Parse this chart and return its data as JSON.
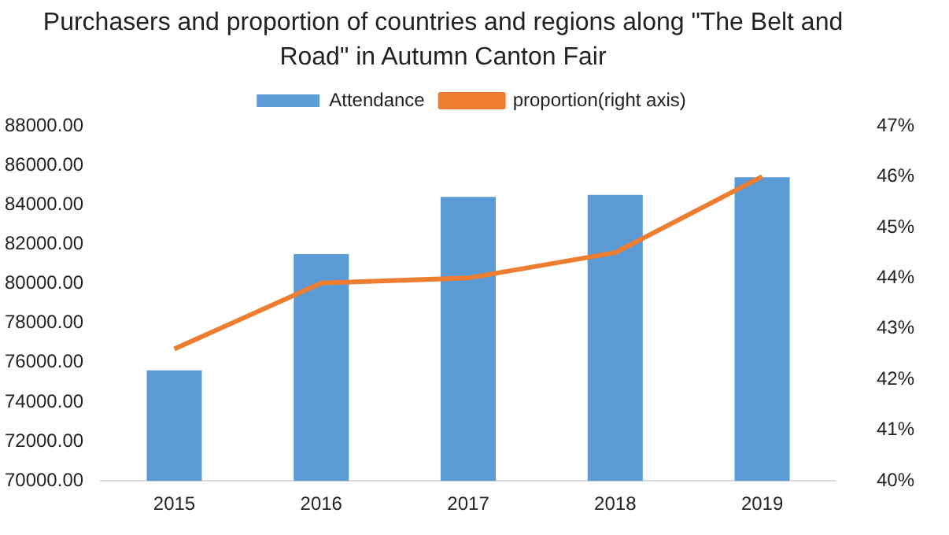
{
  "chart_data": {
    "type": "bar",
    "title": "Purchasers and proportion of countries and regions along \"The Belt and Road\" in Autumn Canton Fair",
    "categories": [
      "2015",
      "2016",
      "2017",
      "2018",
      "2019"
    ],
    "series": [
      {
        "name": "Attendance",
        "color": "#5b9bd5",
        "values": [
          75600,
          81500,
          84400,
          84500,
          85400
        ]
      },
      {
        "name": "proportion(right axis)",
        "type": "line",
        "axis": "y2",
        "color": "#ed7d31",
        "values": [
          42.6,
          43.9,
          44.0,
          44.5,
          46.0
        ]
      }
    ],
    "ylim": [
      70000,
      88000
    ],
    "yticks": [
      {
        "value": 70000,
        "label": "70000.00"
      },
      {
        "value": 72000,
        "label": "72000.00"
      },
      {
        "value": 74000,
        "label": "74000.00"
      },
      {
        "value": 76000,
        "label": "76000.00"
      },
      {
        "value": 78000,
        "label": "78000.00"
      },
      {
        "value": 80000,
        "label": "80000.00"
      },
      {
        "value": 82000,
        "label": "82000.00"
      },
      {
        "value": 84000,
        "label": "84000.00"
      },
      {
        "value": 86000,
        "label": "86000.00"
      },
      {
        "value": 88000,
        "label": "88000.00"
      }
    ],
    "y2lim": [
      40,
      47
    ],
    "y2ticks": [
      {
        "value": 40,
        "label": "40%"
      },
      {
        "value": 41,
        "label": "41%"
      },
      {
        "value": 42,
        "label": "42%"
      },
      {
        "value": 43,
        "label": "43%"
      },
      {
        "value": 44,
        "label": "44%"
      },
      {
        "value": 45,
        "label": "45%"
      },
      {
        "value": 46,
        "label": "46%"
      },
      {
        "value": 47,
        "label": "47%"
      }
    ],
    "grid": false,
    "legend": "top",
    "marker": "none"
  }
}
